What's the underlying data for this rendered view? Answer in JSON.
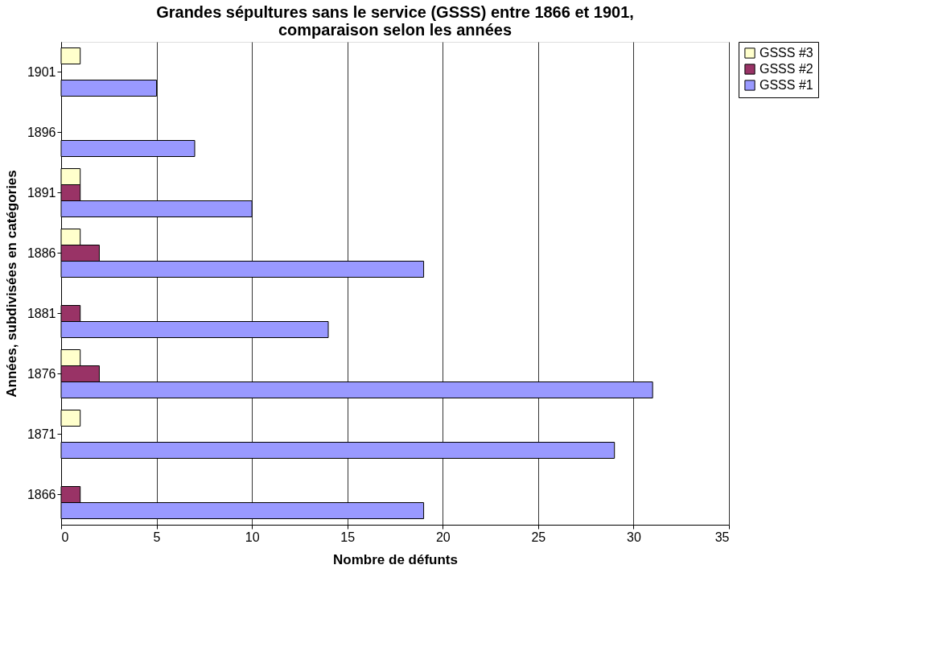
{
  "chart_data": {
    "type": "bar",
    "orientation": "horizontal",
    "title": "Grandes sépultures sans le service (GSSS) entre 1866 et 1901, comparaison selon les années",
    "xlabel": "Nombre de défunts",
    "ylabel": "Années, subdivisées en catégories",
    "categories": [
      "1901",
      "1896",
      "1891",
      "1886",
      "1881",
      "1876",
      "1871",
      "1866"
    ],
    "series": [
      {
        "name": "GSSS #3",
        "color": "#ffffcc",
        "values": [
          1,
          null,
          1,
          1,
          null,
          1,
          1,
          null
        ]
      },
      {
        "name": "GSSS #2",
        "color": "#993366",
        "values": [
          null,
          null,
          1,
          2,
          1,
          2,
          null,
          1
        ]
      },
      {
        "name": "GSSS #1",
        "color": "#9999ff",
        "values": [
          5,
          7,
          10,
          19,
          14,
          31,
          29,
          19
        ]
      }
    ],
    "xlim": [
      0,
      35
    ],
    "xticks": [
      0,
      5,
      10,
      15,
      20,
      25,
      30,
      35
    ],
    "grid": "x",
    "legend": "right"
  }
}
